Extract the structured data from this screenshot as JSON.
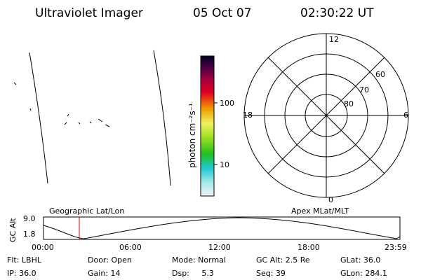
{
  "header": {
    "title": "Ultraviolet Imager",
    "date": "05 Oct 07",
    "time": "02:30:22 UT"
  },
  "colorbar": {
    "label": "photon cm⁻²s⁻¹",
    "ticks": [
      "100",
      "10"
    ]
  },
  "polar": {
    "mlt_labels": [
      "12",
      "18",
      "6",
      "0"
    ],
    "lat_labels": [
      "60",
      "70",
      "80"
    ]
  },
  "timeline": {
    "left_title": "Geographic Lat/Lon",
    "right_title": "Apex MLat/MLT",
    "y_label": "GC Alt",
    "y_ticks": [
      "9.0",
      "1.8"
    ],
    "x_ticks": [
      "00:00",
      "06:00",
      "12:00",
      "18:00",
      "23:59"
    ]
  },
  "info": {
    "rows": [
      [
        "Flt: LBHL",
        "Door: Open",
        "Mode: Normal",
        "GC Alt: 2.5 Re",
        "GLat: 36.0"
      ],
      [
        "IP: 36.0",
        "Gain: 14",
        "Dsp:     5.3",
        "Seq: 39",
        "GLon: 284.1"
      ]
    ]
  }
}
